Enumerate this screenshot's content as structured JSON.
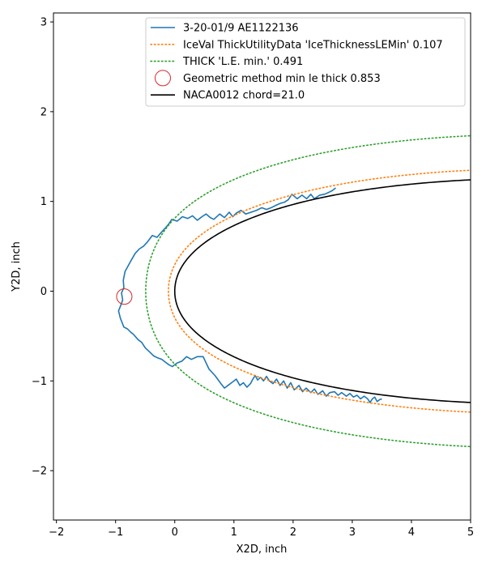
{
  "chart_data": {
    "type": "line",
    "xlabel": "X2D, inch",
    "ylabel": "Y2D, inch",
    "xlim": [
      -2.05,
      5.0
    ],
    "ylim": [
      -2.55,
      3.1
    ],
    "xticks": [
      -2,
      -1,
      0,
      1,
      2,
      3,
      4,
      5
    ],
    "yticks": [
      -2,
      -1,
      0,
      1,
      2,
      3
    ],
    "xtick_labels": [
      "−2",
      "−1",
      "0",
      "1",
      "2",
      "3",
      "4",
      "5"
    ],
    "ytick_labels": [
      "−2",
      "−1",
      "0",
      "1",
      "2",
      "3"
    ],
    "grid": false,
    "legend_position": "upper right",
    "legend": [
      {
        "label": "3-20-01/9 AE1122136",
        "color": "#1f77b4",
        "style": "solid"
      },
      {
        "label": "IceVal ThickUtilityData 'IceThicknessLEMin' 0.107",
        "color": "#ff7f0e",
        "style": "dotted"
      },
      {
        "label": "THICK 'L.E. min.' 0.491",
        "color": "#2ca02c",
        "style": "dotted"
      },
      {
        "label": "Geometric method min le thick 0.853",
        "color": "#d62728",
        "style": "marker-circle"
      },
      {
        "label": "NACA0012 chord=21.0",
        "color": "#000000",
        "style": "solid"
      }
    ],
    "series": [
      {
        "name": "3-20-01/9 AE1122136",
        "color": "#1f77b4",
        "x": [
          2.72,
          2.66,
          2.6,
          2.53,
          2.45,
          2.36,
          2.3,
          2.23,
          2.15,
          2.07,
          1.98,
          1.92,
          1.85,
          1.79,
          1.72,
          1.63,
          1.55,
          1.47,
          1.38,
          1.29,
          1.2,
          1.12,
          1.04,
          0.98,
          0.92,
          0.84,
          0.76,
          0.66,
          0.6,
          0.53,
          0.46,
          0.38,
          0.3,
          0.22,
          0.13,
          0.04,
          -0.05,
          -0.1,
          -0.15,
          -0.22,
          -0.3,
          -0.38,
          -0.46,
          -0.53,
          -0.6,
          -0.67,
          -0.74,
          -0.79,
          -0.84,
          -0.87,
          -0.86,
          -0.9,
          -0.88,
          -0.92,
          -0.95,
          -0.92,
          -0.86,
          -0.8,
          -0.74,
          -0.7,
          -0.62,
          -0.56,
          -0.5,
          -0.42,
          -0.36,
          -0.3,
          -0.22,
          -0.16,
          -0.1,
          -0.04,
          0.04,
          0.12,
          0.2,
          0.28,
          0.38,
          0.48,
          0.58,
          0.68,
          0.78,
          0.84,
          0.9,
          0.96,
          1.04,
          1.1,
          1.16,
          1.22,
          1.28,
          1.32,
          1.36,
          1.4,
          1.45,
          1.5,
          1.55,
          1.6,
          1.66,
          1.72,
          1.78,
          1.84,
          1.9,
          1.96,
          2.02,
          2.1,
          2.16,
          2.22,
          2.3,
          2.36,
          2.42,
          2.5,
          2.56,
          2.62,
          2.7,
          2.76,
          2.82,
          2.9,
          2.96,
          3.02,
          3.08,
          3.14,
          3.2,
          3.26,
          3.3,
          3.34,
          3.38,
          3.42,
          3.46,
          3.5
        ],
        "y": [
          1.15,
          1.12,
          1.1,
          1.08,
          1.07,
          1.03,
          1.08,
          1.03,
          1.07,
          1.03,
          1.08,
          1.02,
          0.99,
          0.98,
          0.96,
          0.93,
          0.91,
          0.93,
          0.9,
          0.88,
          0.86,
          0.9,
          0.87,
          0.83,
          0.88,
          0.82,
          0.86,
          0.8,
          0.82,
          0.86,
          0.83,
          0.79,
          0.84,
          0.81,
          0.83,
          0.78,
          0.8,
          0.75,
          0.71,
          0.66,
          0.6,
          0.62,
          0.55,
          0.5,
          0.47,
          0.42,
          0.34,
          0.28,
          0.22,
          0.12,
          0.04,
          -0.02,
          -0.1,
          -0.17,
          -0.22,
          -0.3,
          -0.4,
          -0.42,
          -0.46,
          -0.48,
          -0.54,
          -0.57,
          -0.63,
          -0.68,
          -0.72,
          -0.74,
          -0.76,
          -0.79,
          -0.82,
          -0.84,
          -0.8,
          -0.78,
          -0.73,
          -0.76,
          -0.73,
          -0.73,
          -0.87,
          -0.94,
          -1.03,
          -1.08,
          -1.05,
          -1.02,
          -0.98,
          -1.05,
          -1.02,
          -1.07,
          -1.03,
          -0.98,
          -0.94,
          -0.99,
          -0.96,
          -1.0,
          -0.95,
          -1.0,
          -1.03,
          -0.98,
          -1.05,
          -1.0,
          -1.08,
          -1.02,
          -1.1,
          -1.05,
          -1.12,
          -1.08,
          -1.13,
          -1.09,
          -1.15,
          -1.11,
          -1.17,
          -1.13,
          -1.12,
          -1.16,
          -1.13,
          -1.17,
          -1.14,
          -1.18,
          -1.16,
          -1.2,
          -1.17,
          -1.2,
          -1.24,
          -1.2,
          -1.18,
          -1.23,
          -1.21,
          -1.2
        ]
      },
      {
        "name": "IceVal ThickUtilityData 'IceThicknessLEMin' 0.107",
        "color": "#ff7f0e",
        "shape": "naca0012-offset",
        "offset": 0.107
      },
      {
        "name": "THICK 'L.E. min.' 0.491",
        "color": "#2ca02c",
        "shape": "naca0012-offset",
        "offset": 0.491
      },
      {
        "name": "Geometric method min le thick 0.853",
        "color": "#d62728",
        "marker": "circle",
        "x": [
          -0.853
        ],
        "y": [
          -0.06
        ]
      },
      {
        "name": "NACA0012 chord=21.0",
        "color": "#000000",
        "shape": "naca0012",
        "chord": 21.0
      }
    ]
  }
}
